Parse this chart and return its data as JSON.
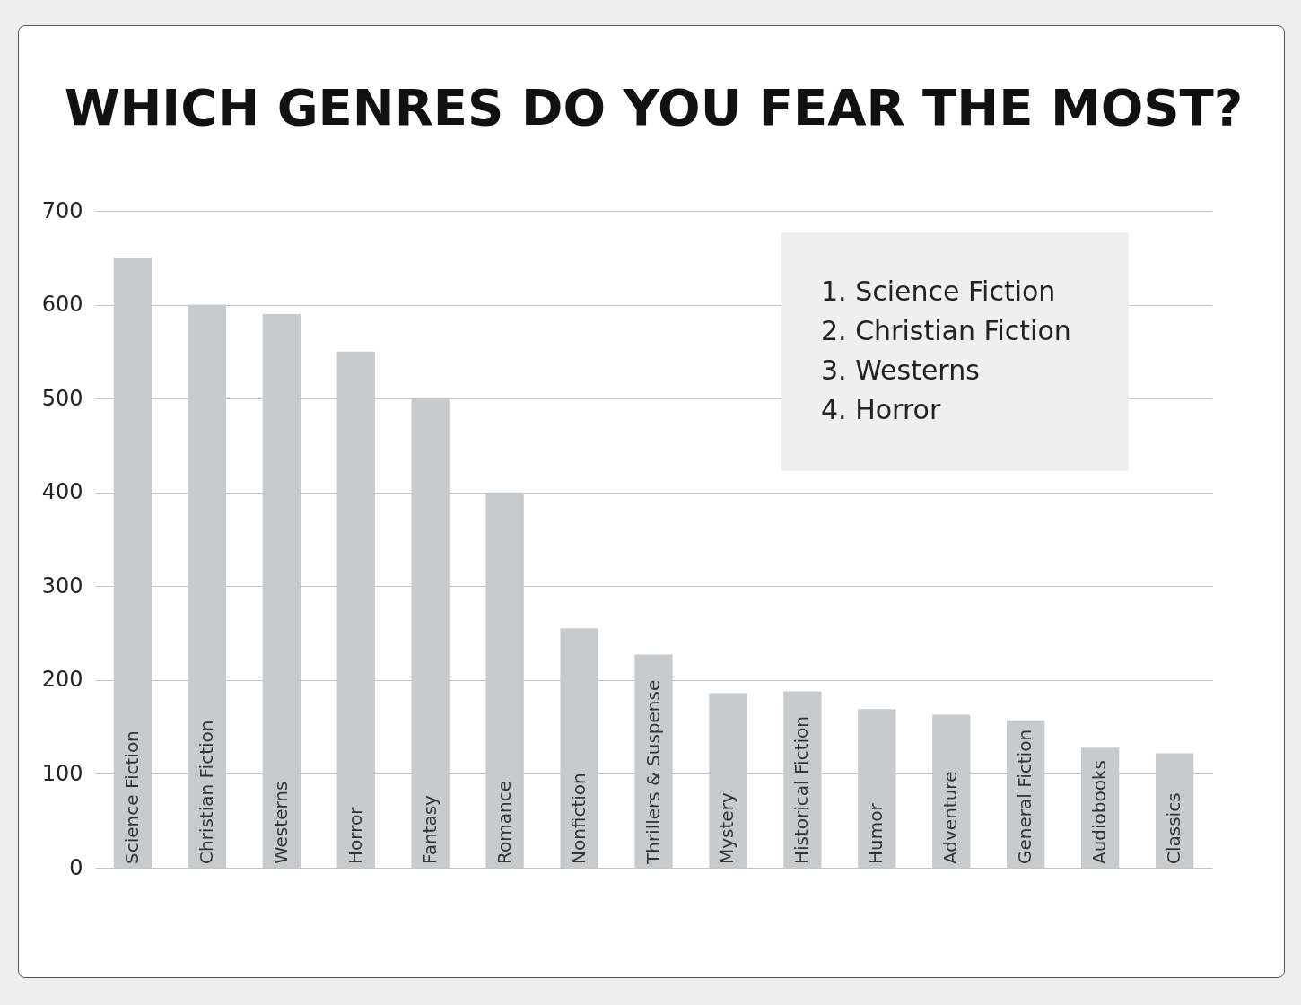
{
  "chart_data": {
    "type": "bar",
    "title": "WHICH GENRES DO YOU FEAR THE MOST?",
    "categories": [
      "Science Fiction",
      "Christian Fiction",
      "Westerns",
      "Horror",
      "Fantasy",
      "Romance",
      "Nonfiction",
      "Thrillers & Suspense",
      "Mystery",
      "Historical Fiction",
      "Humor",
      "Adventure",
      "General Fiction",
      "Audiobooks",
      "Classics"
    ],
    "values": [
      650,
      600,
      590,
      550,
      500,
      400,
      255,
      227,
      186,
      188,
      169,
      163,
      157,
      128,
      122
    ],
    "color": "#c8cbce",
    "ylim": [
      0,
      700
    ],
    "yticks": [
      0,
      100,
      200,
      300,
      400,
      500,
      600,
      700
    ],
    "grid": true,
    "annotations": [
      "1. Science Fiction",
      "2. Christian Fiction",
      "3. Westerns",
      "4. Horror"
    ]
  }
}
